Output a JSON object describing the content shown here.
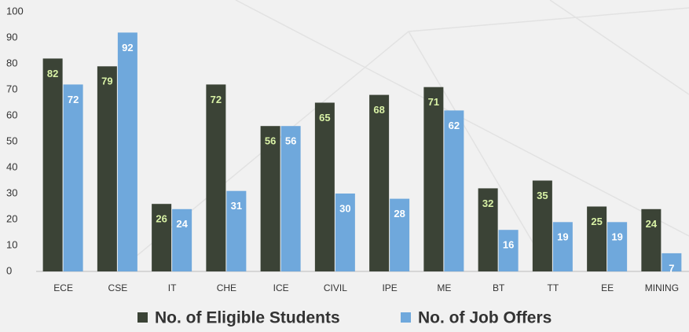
{
  "chart_data": {
    "type": "bar",
    "categories": [
      "ECE",
      "CSE",
      "IT",
      "CHE",
      "ICE",
      "CIVIL",
      "IPE",
      "ME",
      "BT",
      "TT",
      "EE",
      "MINING"
    ],
    "series": [
      {
        "name": "No. of Eligible Students",
        "color": "#3b4336",
        "label_color": "#d9f2a6",
        "values": [
          82,
          79,
          26,
          72,
          56,
          65,
          68,
          71,
          32,
          35,
          25,
          24
        ]
      },
      {
        "name": "No. of Job Offers",
        "color": "#6fa8dc",
        "label_color": "#ffffff",
        "values": [
          72,
          92,
          24,
          31,
          56,
          30,
          28,
          62,
          16,
          19,
          19,
          7
        ]
      }
    ],
    "ylim": [
      0,
      100
    ],
    "yticks": [
      0,
      10,
      20,
      30,
      40,
      50,
      60,
      70,
      80,
      90,
      100
    ],
    "legend": "bottom"
  }
}
